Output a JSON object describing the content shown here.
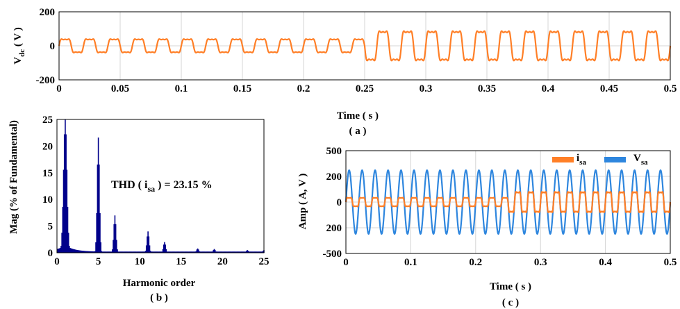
{
  "chart_data": [
    {
      "id": "a",
      "type": "line",
      "panel_label": "( a )",
      "xlabel": "Time ( s )",
      "ylabel": "V",
      "ylabel_sub": "dc",
      "ylabel_suffix": " ( V )",
      "xlim": [
        0,
        0.5
      ],
      "ylim": [
        -200,
        200
      ],
      "xticks": [
        "0",
        "0.05",
        "0.1",
        "0.15",
        "0.2",
        "0.25",
        "0.3",
        "0.35",
        "0.4",
        "0.45",
        "0.5"
      ],
      "yticks": [
        "200",
        "0",
        "-200"
      ],
      "grid": true,
      "series": [
        {
          "color": "#ff7f27",
          "waveform": "stepped-sine",
          "frequency_hz": 50,
          "segments": [
            {
              "t_start": 0,
              "t_end": 0.25,
              "amplitude": 60
            },
            {
              "t_start": 0.25,
              "t_end": 0.5,
              "amplitude": 130
            }
          ]
        }
      ]
    },
    {
      "id": "b",
      "type": "bar",
      "panel_label": "( b )",
      "xlabel": "Harmonic order",
      "ylabel": "Mag (% of Fundamental)",
      "xlim": [
        0,
        25
      ],
      "ylim": [
        0,
        25
      ],
      "xticks": [
        "0",
        "5",
        "10",
        "15",
        "20",
        "25"
      ],
      "yticks": [
        "25",
        "20",
        "15",
        "10",
        "5",
        "0"
      ],
      "bar_color": "#00008b",
      "annotation": {
        "prefix": "THD ( i",
        "sub": "sa",
        "suffix": " ) = 23.15 %"
      },
      "harmonics": [
        {
          "order": 1,
          "value": 25
        },
        {
          "order": 5,
          "value": 21.6
        },
        {
          "order": 7,
          "value": 7.0
        },
        {
          "order": 11,
          "value": 4.0
        },
        {
          "order": 13,
          "value": 2.0
        },
        {
          "order": 17,
          "value": 0.8
        },
        {
          "order": 19,
          "value": 0.7
        },
        {
          "order": 23,
          "value": 0.5
        },
        {
          "order": 25,
          "value": 0.5
        }
      ]
    },
    {
      "id": "c",
      "type": "line",
      "panel_label": "( c )",
      "xlabel": "Time ( s )",
      "ylabel": "Amp ( A, V )",
      "xlim": [
        0,
        0.5
      ],
      "ylim": [
        -500,
        500
      ],
      "xticks": [
        "0",
        "0.1",
        "0.2",
        "0.3",
        "0.4",
        "0.5"
      ],
      "yticks": [
        "500",
        "200",
        "0",
        "200",
        "-500"
      ],
      "grid": true,
      "legend_position": "top-right",
      "series": [
        {
          "name": "i",
          "name_sub": "sa",
          "color": "#ff7f27",
          "waveform": "stepped-sine",
          "frequency_hz": 50,
          "segments": [
            {
              "t_start": 0,
              "t_end": 0.25,
              "amplitude": 65
            },
            {
              "t_start": 0.25,
              "t_end": 0.5,
              "amplitude": 150
            }
          ]
        },
        {
          "name": "V",
          "name_sub": "sa",
          "color": "#2e86de",
          "waveform": "sine",
          "frequency_hz": 50,
          "segments": [
            {
              "t_start": 0,
              "t_end": 0.5,
              "amplitude": 310
            }
          ]
        }
      ]
    }
  ]
}
